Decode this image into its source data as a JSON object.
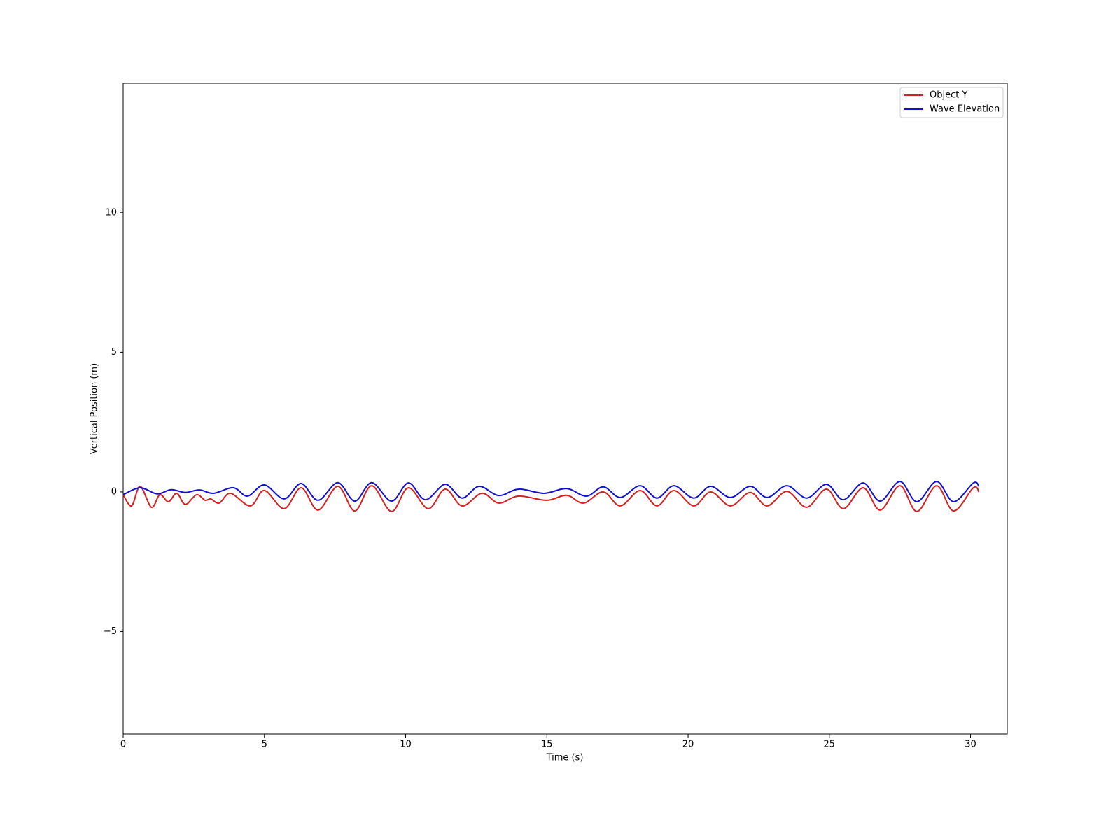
{
  "chart_data": {
    "type": "line",
    "xlabel": "Time (s)",
    "ylabel": "Vertical Position (m)",
    "xlim": [
      0,
      31.3
    ],
    "ylim": [
      -8.67,
      14.63
    ],
    "xticks": [
      0,
      5,
      10,
      15,
      20,
      25,
      30
    ],
    "yticks": [
      {
        "value": -5,
        "label": "−5"
      },
      0,
      5,
      10
    ],
    "legend": "upper right",
    "series": [
      {
        "name": "Object Y",
        "color": "#d62020",
        "x": [
          0,
          0.3,
          0.6,
          1.0,
          1.3,
          1.6,
          1.9,
          2.2,
          2.6,
          2.9,
          3.1,
          3.4,
          3.8,
          4.5,
          5.0,
          5.7,
          6.3,
          6.9,
          7.6,
          8.2,
          8.8,
          9.5,
          10.1,
          10.8,
          11.4,
          12.0,
          12.7,
          13.3,
          14.0,
          15.0,
          15.7,
          16.3,
          17.0,
          17.6,
          18.3,
          18.9,
          19.5,
          20.2,
          20.8,
          21.5,
          22.2,
          22.8,
          23.5,
          24.2,
          24.9,
          25.5,
          26.2,
          26.8,
          27.5,
          28.1,
          28.8,
          29.4,
          30.1,
          30.3
        ],
        "values": [
          -0.1,
          -0.5,
          0.2,
          -0.55,
          -0.1,
          -0.35,
          -0.05,
          -0.45,
          -0.1,
          -0.3,
          -0.25,
          -0.4,
          -0.05,
          -0.5,
          0.05,
          -0.6,
          0.15,
          -0.65,
          0.2,
          -0.68,
          0.22,
          -0.7,
          0.15,
          -0.6,
          0.1,
          -0.5,
          -0.05,
          -0.4,
          -0.15,
          -0.3,
          -0.12,
          -0.4,
          0,
          -0.5,
          0.05,
          -0.5,
          0.05,
          -0.5,
          0,
          -0.5,
          -0.02,
          -0.5,
          0.02,
          -0.55,
          0.1,
          -0.6,
          0.15,
          -0.65,
          0.22,
          -0.7,
          0.22,
          -0.68,
          0.15,
          0
        ]
      },
      {
        "name": "Wave Elevation",
        "color": "#1010d0",
        "x": [
          0,
          0.6,
          1.2,
          1.7,
          2.2,
          2.7,
          3.2,
          3.9,
          4.4,
          5.0,
          5.7,
          6.3,
          6.9,
          7.6,
          8.2,
          8.8,
          9.5,
          10.1,
          10.7,
          11.4,
          12.0,
          12.6,
          13.3,
          14.0,
          14.9,
          15.7,
          16.4,
          17.0,
          17.6,
          18.3,
          18.9,
          19.5,
          20.2,
          20.8,
          21.5,
          22.2,
          22.8,
          23.5,
          24.2,
          24.9,
          25.5,
          26.2,
          26.8,
          27.5,
          28.1,
          28.8,
          29.4,
          30.1,
          30.3
        ],
        "values": [
          -0.1,
          0.15,
          -0.07,
          0.08,
          -0.02,
          0.07,
          -0.05,
          0.15,
          -0.15,
          0.25,
          -0.25,
          0.3,
          -0.3,
          0.33,
          -0.33,
          0.33,
          -0.33,
          0.32,
          -0.28,
          0.27,
          -0.22,
          0.2,
          -0.13,
          0.1,
          -0.05,
          0.12,
          -0.15,
          0.18,
          -0.2,
          0.22,
          -0.22,
          0.22,
          -0.22,
          0.2,
          -0.2,
          0.2,
          -0.2,
          0.22,
          -0.22,
          0.27,
          -0.28,
          0.32,
          -0.33,
          0.37,
          -0.35,
          0.37,
          -0.35,
          0.32,
          0.2
        ]
      }
    ]
  }
}
